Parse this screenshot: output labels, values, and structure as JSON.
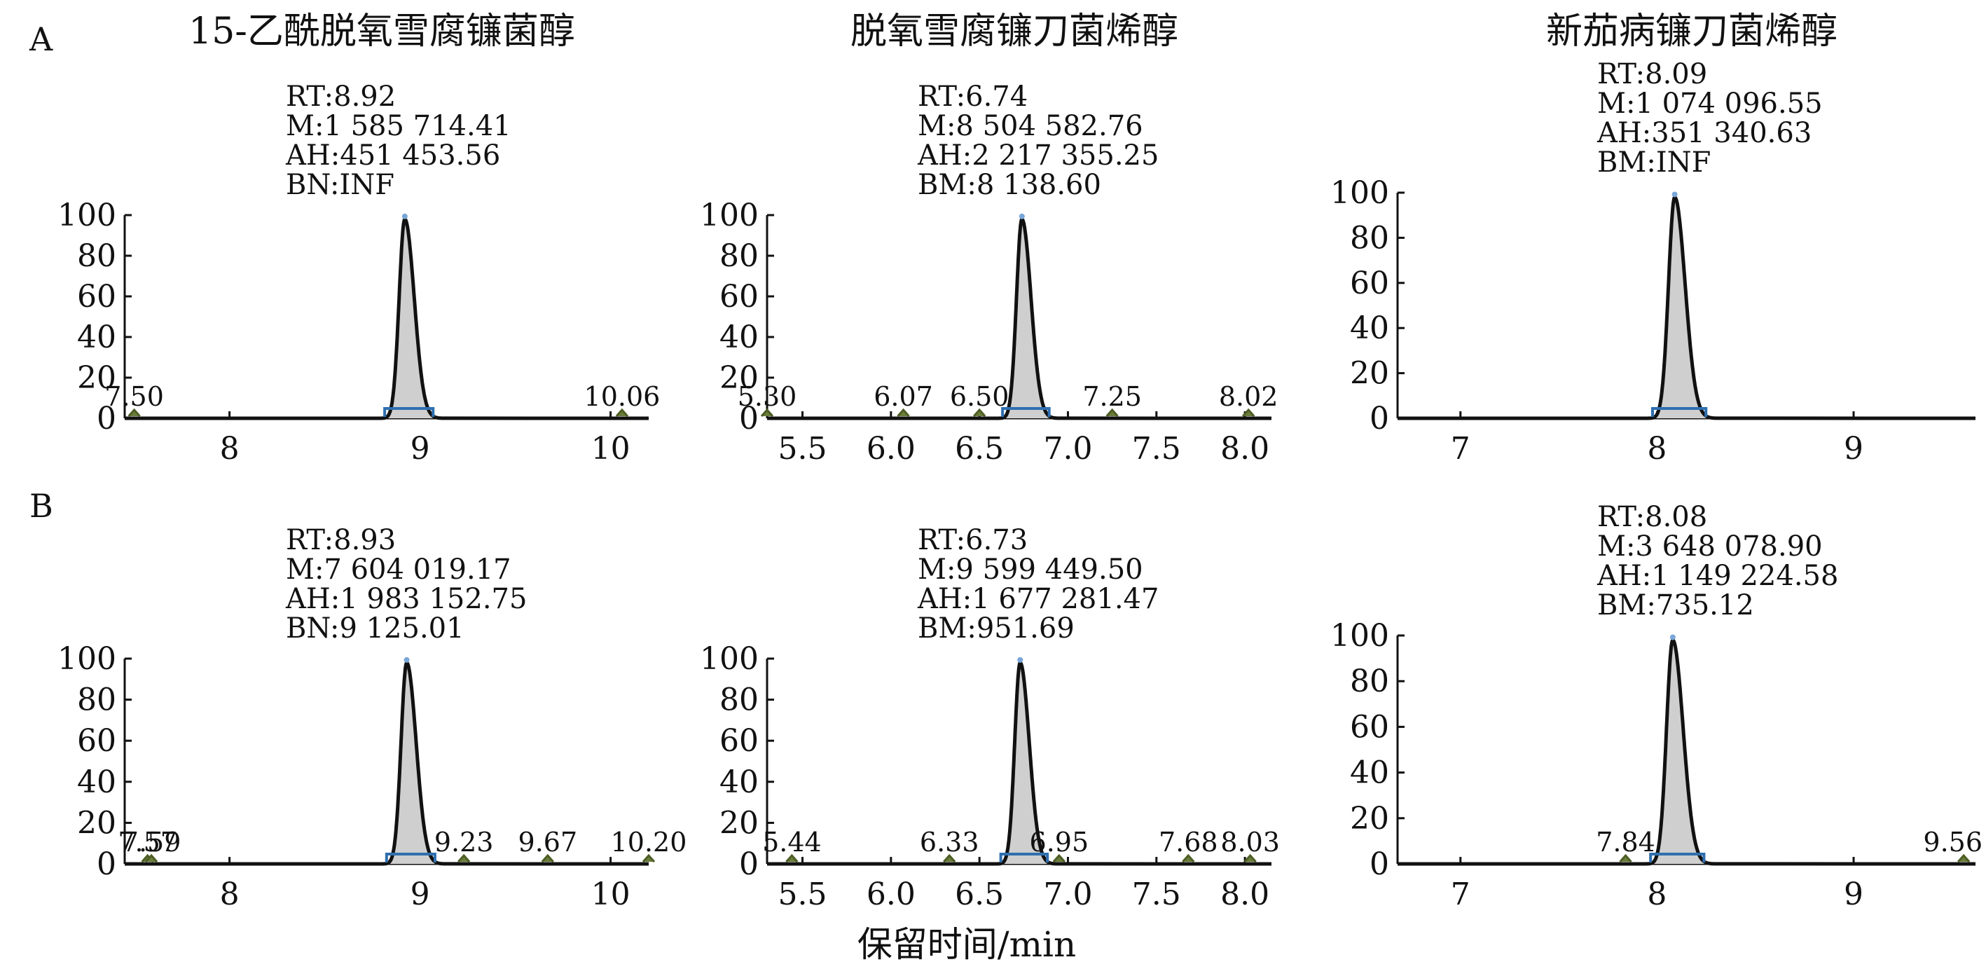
{
  "figure": {
    "row_labels": [
      "A",
      "B"
    ],
    "xaxis_title": "保留时间/min"
  },
  "chart_data": [
    {
      "type": "line",
      "row": "A",
      "col": 0,
      "title": "15-乙酰脱氧雪腐镰菌醇",
      "annotations": [
        "RT:8.92",
        "M:1 585 714.41",
        "AH:451 453.56",
        "BN:INF"
      ],
      "xlim": [
        7.45,
        10.2
      ],
      "xticks": [
        8,
        9,
        10
      ],
      "xtick_labels": [
        "8",
        "9",
        "10"
      ],
      "ylim": [
        0,
        100
      ],
      "yticks": [
        0,
        20,
        40,
        60,
        80,
        100
      ],
      "main_peak": {
        "rt": 8.92,
        "height": 98
      },
      "minor_peaks": [
        {
          "rt": 7.5,
          "label": "7.50"
        },
        {
          "rt": 10.06,
          "label": "10.06"
        }
      ]
    },
    {
      "type": "line",
      "row": "A",
      "col": 1,
      "title": "脱氧雪腐镰刀菌烯醇",
      "annotations": [
        "RT:6.74",
        "M:8 504 582.76",
        "AH:2 217 355.25",
        "BM:8 138.60"
      ],
      "xlim": [
        5.3,
        8.15
      ],
      "xticks": [
        5.5,
        6.0,
        6.5,
        7.0,
        7.5,
        8.0
      ],
      "xtick_labels": [
        "5.5",
        "6.0",
        "6.5",
        "7.0",
        "7.5",
        "8.0"
      ],
      "ylim": [
        0,
        100
      ],
      "yticks": [
        0,
        20,
        40,
        60,
        80,
        100
      ],
      "main_peak": {
        "rt": 6.74,
        "height": 98
      },
      "minor_peaks": [
        {
          "rt": 5.3,
          "label": "5.30"
        },
        {
          "rt": 6.07,
          "label": "6.07"
        },
        {
          "rt": 6.5,
          "label": "6.50"
        },
        {
          "rt": 7.25,
          "label": "7.25"
        },
        {
          "rt": 8.02,
          "label": "8.02"
        }
      ]
    },
    {
      "type": "line",
      "row": "A",
      "col": 2,
      "title": "新茄病镰刀菌烯醇",
      "annotations": [
        "RT:8.09",
        "M:1 074 096.55",
        "AH:351 340.63",
        "BM:INF"
      ],
      "xlim": [
        6.68,
        9.62
      ],
      "xticks": [
        7,
        8,
        9
      ],
      "xtick_labels": [
        "7",
        "8",
        "9"
      ],
      "ylim": [
        0,
        100
      ],
      "yticks": [
        0,
        20,
        40,
        60,
        80,
        100
      ],
      "main_peak": {
        "rt": 8.09,
        "height": 98
      },
      "minor_peaks": []
    },
    {
      "type": "line",
      "row": "B",
      "col": 0,
      "title": "",
      "annotations": [
        "RT:8.93",
        "M:7 604 019.17",
        "AH:1 983 152.75",
        "BN:9 125.01"
      ],
      "xlim": [
        7.45,
        10.2
      ],
      "xticks": [
        8,
        9,
        10
      ],
      "xtick_labels": [
        "8",
        "9",
        "10"
      ],
      "ylim": [
        0,
        100
      ],
      "yticks": [
        0,
        20,
        40,
        60,
        80,
        100
      ],
      "main_peak": {
        "rt": 8.93,
        "height": 98
      },
      "minor_peaks": [
        {
          "rt": 7.57,
          "label": "7.57"
        },
        {
          "rt": 7.59,
          "label": "7.59"
        },
        {
          "rt": 9.23,
          "label": "9.23"
        },
        {
          "rt": 9.67,
          "label": "9.67"
        },
        {
          "rt": 10.2,
          "label": "10.20"
        }
      ]
    },
    {
      "type": "line",
      "row": "B",
      "col": 1,
      "title": "",
      "annotations": [
        "RT:6.73",
        "M:9 599 449.50",
        "AH:1 677 281.47",
        "BM:951.69"
      ],
      "xlim": [
        5.3,
        8.15
      ],
      "xticks": [
        5.5,
        6.0,
        6.5,
        7.0,
        7.5,
        8.0
      ],
      "xtick_labels": [
        "5.5",
        "6.0",
        "6.5",
        "7.0",
        "7.5",
        "8.0"
      ],
      "ylim": [
        0,
        100
      ],
      "yticks": [
        0,
        20,
        40,
        60,
        80,
        100
      ],
      "main_peak": {
        "rt": 6.73,
        "height": 98
      },
      "minor_peaks": [
        {
          "rt": 5.44,
          "label": "5.44"
        },
        {
          "rt": 6.33,
          "label": "6.33"
        },
        {
          "rt": 6.95,
          "label": "6.95"
        },
        {
          "rt": 7.68,
          "label": "7.68"
        },
        {
          "rt": 8.03,
          "label": "8.03"
        }
      ]
    },
    {
      "type": "line",
      "row": "B",
      "col": 2,
      "title": "",
      "annotations": [
        "RT:8.08",
        "M:3 648 078.90",
        "AH:1 149 224.58",
        "BM:735.12"
      ],
      "xlim": [
        6.68,
        9.62
      ],
      "xticks": [
        7,
        8,
        9
      ],
      "xtick_labels": [
        "7",
        "8",
        "9"
      ],
      "ylim": [
        0,
        100
      ],
      "yticks": [
        0,
        20,
        40,
        60,
        80,
        100
      ],
      "main_peak": {
        "rt": 8.08,
        "height": 98
      },
      "minor_peaks": [
        {
          "rt": 7.84,
          "label": "7.84"
        },
        {
          "rt": 9.56,
          "label": "9.56"
        }
      ]
    }
  ]
}
